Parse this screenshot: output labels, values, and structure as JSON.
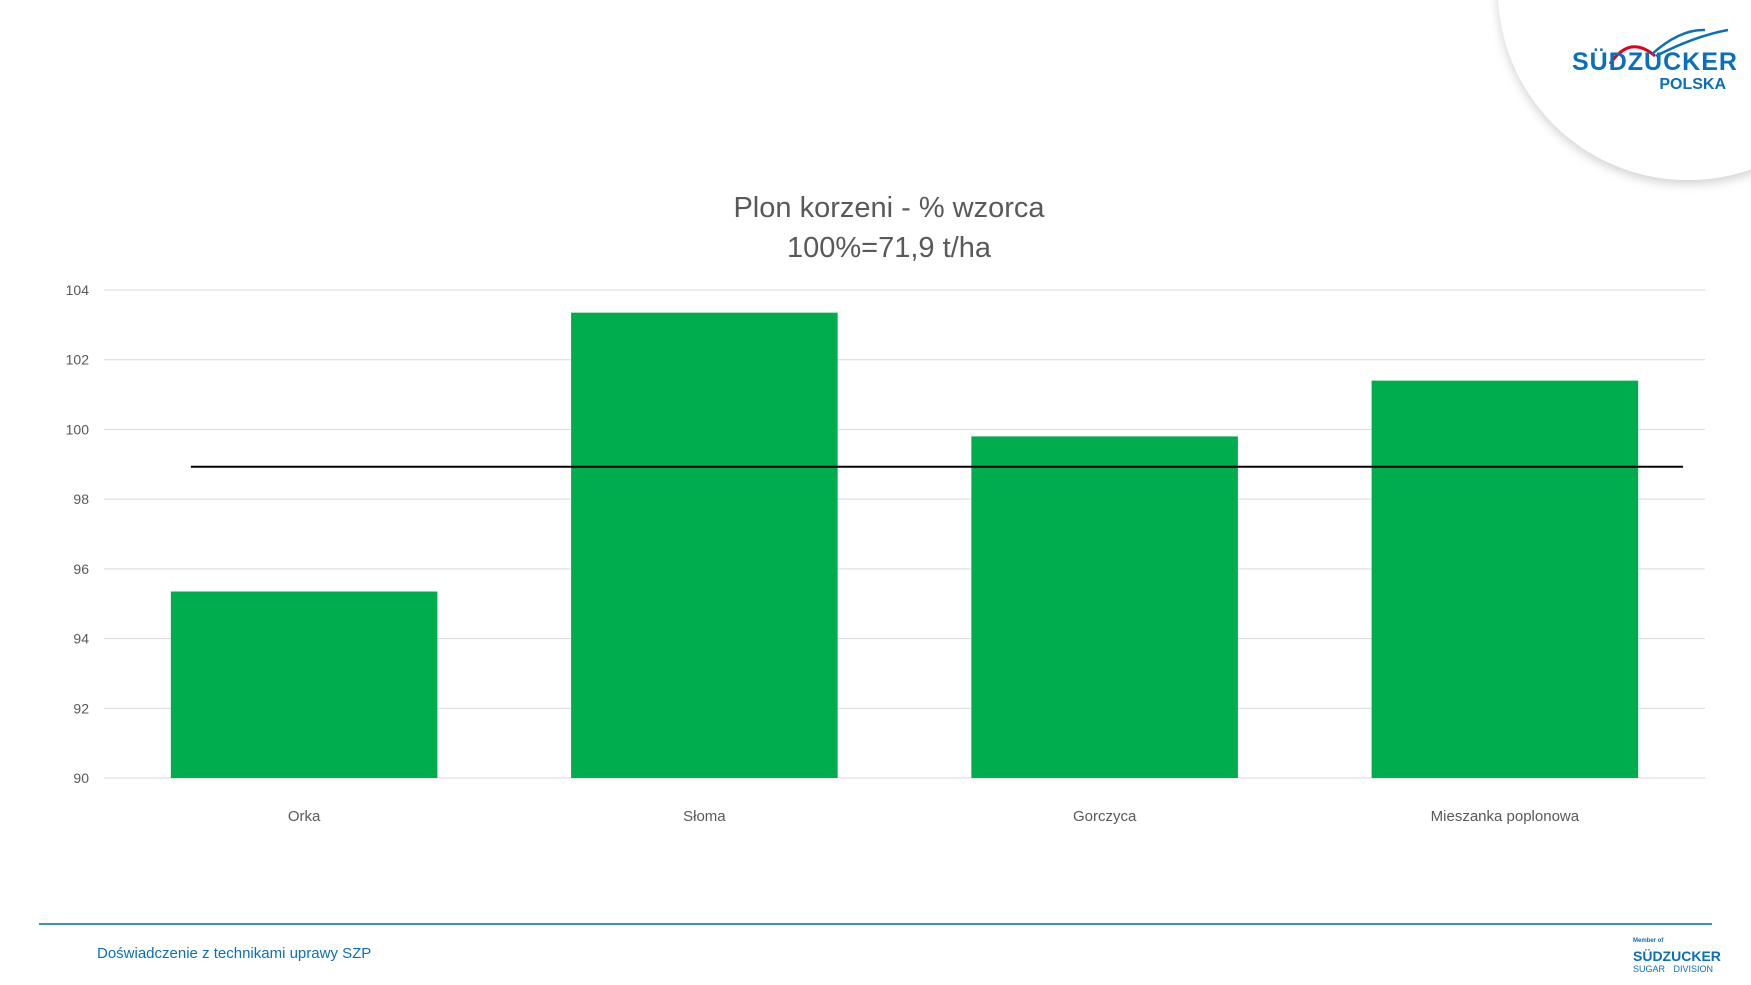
{
  "logo": {
    "brand": "SÜDZUCKER",
    "sub": "POLSKA"
  },
  "footer": {
    "text": "Doświadczenie z technikami uprawy SZP",
    "member_logo": {
      "small": "Member of",
      "brand": "SÜDZUCKER",
      "left": "SUGAR",
      "right": "DIVISION"
    }
  },
  "colors": {
    "bar": "#00ad4e",
    "reference_line": "#000000",
    "grid": "#d9d9d9",
    "brand": "#0a6fbd",
    "accent_red": "#e2001a"
  },
  "chart_data": {
    "type": "bar",
    "title": "Plon korzeni - % wzorca",
    "subtitle": "100%=71,9 t/ha",
    "categories": [
      "Orka",
      "Słoma",
      "Gorczyca",
      "Mieszanka poplonowa"
    ],
    "values": [
      95.35,
      103.35,
      99.8,
      101.4
    ],
    "reference_line": 98.93,
    "ylim": [
      90,
      104
    ],
    "yticks": [
      "90",
      "92",
      "94",
      "96",
      "98",
      "100",
      "102",
      "104"
    ],
    "grid": true,
    "legend": "none"
  }
}
